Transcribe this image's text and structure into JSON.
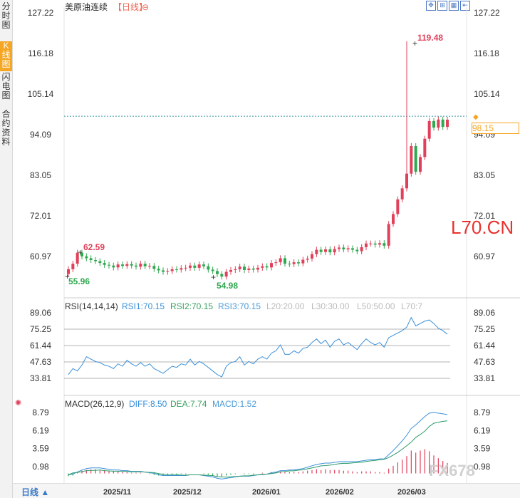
{
  "sidebar": {
    "tabs": [
      "分时图",
      "K线图",
      "闪电图",
      "合约资料"
    ],
    "active": 1
  },
  "header": {
    "title": "美原油连续",
    "period": "【日线】",
    "circle_icon": "⊖"
  },
  "price_labels": {
    "high": "119.48",
    "low1": "55.96",
    "low2": "54.98",
    "mid": "62.59",
    "last": "98.15"
  },
  "watermark": "L70.CN",
  "brand": "FX678",
  "rsi": {
    "title": "RSI(14,14,14)",
    "rsi1": "RSI1:70.15",
    "rsi2": "RSI2:70.15",
    "rsi3": "RSI3:70.15",
    "l20": "L20:20.00",
    "l30": "L30:30.00",
    "l50": "L50:50.00",
    "l70": "L70:7"
  },
  "macd": {
    "title": "MACD(26,12,9)",
    "diff": "DIFF:8.50",
    "dea": "DEA:7.74",
    "macd": "MACD:1.52"
  },
  "bottom": {
    "period": "日线 ▲"
  },
  "colors": {
    "up": "#e0405a",
    "down": "#2fa84f",
    "accent": "#f5a623",
    "line1": "#3a8fd8",
    "line2": "#2a9a6a"
  },
  "chart_data": [
    {
      "type": "candlestick",
      "title": "美原油连续",
      "yticks": [
        127.22,
        116.18,
        105.14,
        94.09,
        83.05,
        72.01,
        60.97
      ],
      "ylim": [
        55,
        127.22
      ],
      "xticks": [
        "2025/11",
        "2025/12",
        "2026/01",
        "2026/02",
        "2026/03"
      ],
      "close": [
        57.5,
        59,
        62,
        61,
        60.5,
        60,
        59.7,
        59.2,
        58.7,
        58.5,
        58,
        58.8,
        58.4,
        58.9,
        58.5,
        58.2,
        59,
        58.3,
        58.4,
        57.6,
        57.2,
        56.8,
        57,
        57.5,
        57.4,
        57.8,
        57.9,
        58.5,
        57.9,
        58.8,
        58.3,
        57.4,
        57,
        56.2,
        55.5,
        56.8,
        57.3,
        57.5,
        58.2,
        57.3,
        57.7,
        57.4,
        57.9,
        58.3,
        58,
        59.2,
        59.4,
        60.5,
        59,
        58.9,
        59.4,
        59.1,
        60.1,
        60.4,
        61.6,
        62.8,
        62.2,
        62.9,
        62.1,
        63,
        63.4,
        62.9,
        63.2,
        62.8,
        62.4,
        63.5,
        64.5,
        64.5,
        64.2,
        64.6,
        63.9,
        69.8,
        72.5,
        76.5,
        79.5,
        83.5,
        91,
        84,
        88,
        93,
        97.8,
        96,
        98.2,
        96.2,
        98.15
      ],
      "markers": {
        "high": 119.48,
        "low1": 55.96,
        "low2": 54.98,
        "mid": 62.59
      }
    },
    {
      "type": "line",
      "title": "RSI(14,14,14)",
      "yticks": [
        89.06,
        75.25,
        61.44,
        47.63,
        33.81
      ]
    },
    {
      "type": "bar+line",
      "title": "MACD(26,12,9)",
      "yticks": [
        8.79,
        6.19,
        3.59,
        0.98
      ]
    }
  ]
}
